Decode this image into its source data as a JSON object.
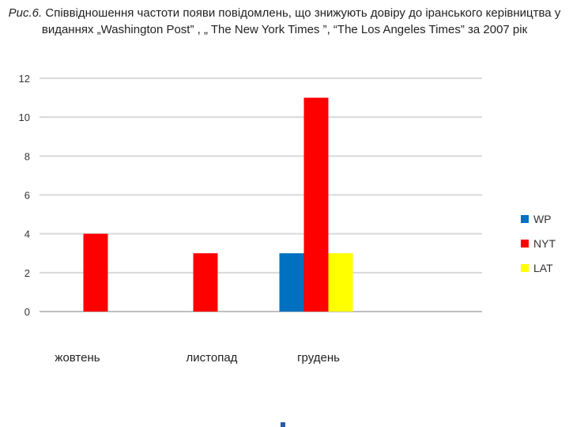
{
  "caption": {
    "figure_label": "Рис.6.",
    "text": " Співвідношення частоти появи повідомлень, що знижують довіру до іранського керівництва у виданнях „Washington Post” , „ The New York Times ”, “The Los Angeles Times” за 2007 рік"
  },
  "colors": {
    "WP": "#0070c0",
    "NYT": "#ff0000",
    "LAT": "#ffff00",
    "grid": "#d9d9d9",
    "axis": "#bfbfbf"
  },
  "chart_data": {
    "type": "bar",
    "categories": [
      "жовтень",
      "листопад",
      "грудень"
    ],
    "series": [
      {
        "name": "WP",
        "values": [
          0,
          0,
          3
        ]
      },
      {
        "name": "NYT",
        "values": [
          4,
          3,
          11
        ]
      },
      {
        "name": "LAT",
        "values": [
          0,
          0,
          3
        ]
      }
    ],
    "yticks": [
      "0",
      "2",
      "4",
      "6",
      "8",
      "10",
      "12"
    ],
    "ylim": [
      0,
      12
    ],
    "grid": true,
    "legend_position": "right"
  }
}
